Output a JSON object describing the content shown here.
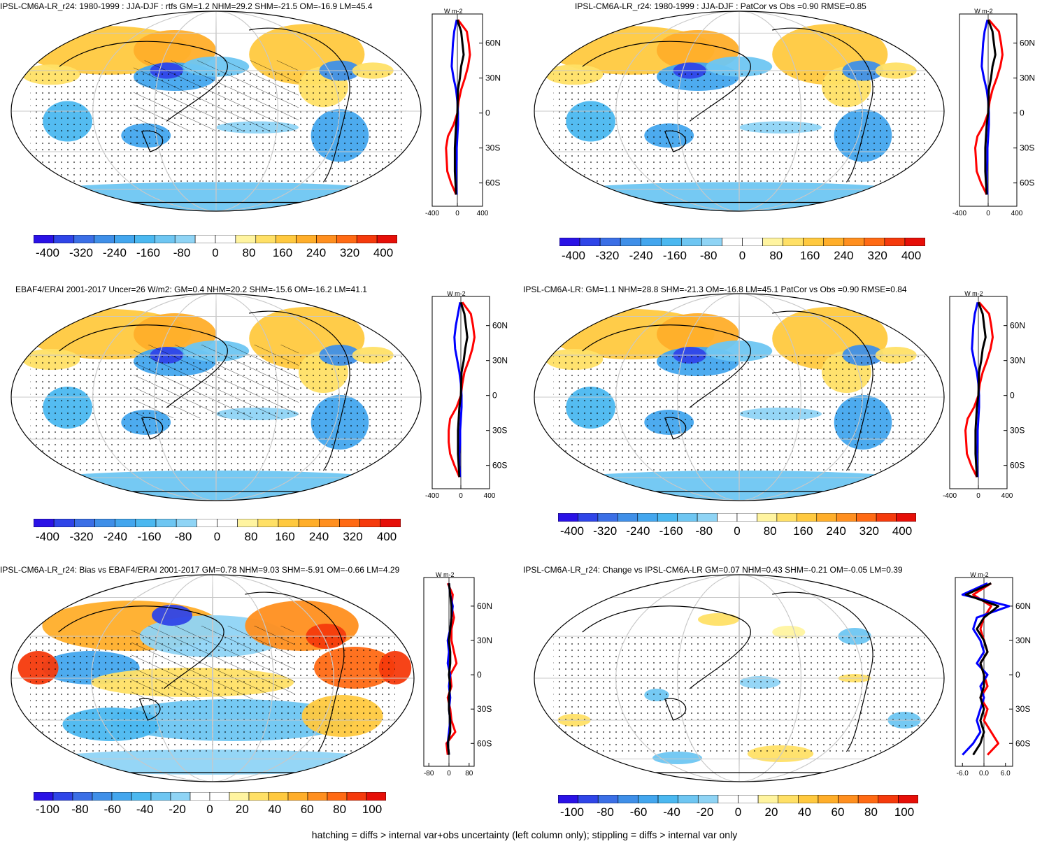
{
  "footer": "hatching = diffs > internal var+obs uncertainty (left column only); stippling = diffs > internal var only",
  "chart_data": [
    {
      "type": "heatmap",
      "title": "IPSL-CM6A-LR_r24: 1980-1999 : JJA-DJF : rtfs GM=1.2 NHM=29.2 SHM=-21.5 OM=-16.9 LM=45.4",
      "colorbar_ticks": [
        "-400",
        "-320",
        "-240",
        "-160",
        "-80",
        "0",
        "80",
        "160",
        "240",
        "320",
        "400"
      ],
      "zonal": {
        "unit": "W m-2",
        "xticks": [
          "-400",
          "0",
          "400"
        ],
        "xlim": [
          -400,
          400
        ],
        "lat_labels": [
          "60N",
          "30N",
          "0",
          "30S",
          "60S"
        ],
        "series": [
          {
            "color": "#ff0000",
            "lat": [
              80,
              70,
              60,
              50,
              40,
              30,
              20,
              10,
              0,
              -10,
              -20,
              -30,
              -40,
              -50,
              -60,
              -70
            ],
            "values": [
              10,
              150,
              180,
              200,
              170,
              120,
              60,
              20,
              0,
              -60,
              -150,
              -180,
              -170,
              -160,
              -100,
              -20
            ]
          },
          {
            "color": "#0000ff",
            "lat": [
              80,
              70,
              60,
              50,
              40,
              30,
              20,
              10,
              0,
              -10,
              -20,
              -30,
              -40,
              -50,
              -60,
              -70
            ],
            "values": [
              -10,
              -50,
              -70,
              -80,
              -90,
              -60,
              -20,
              0,
              10,
              10,
              0,
              -10,
              -10,
              -20,
              -20,
              -10
            ]
          },
          {
            "color": "#000000",
            "lat": [
              80,
              70,
              60,
              50,
              40,
              30,
              20,
              10,
              0,
              -10,
              -20,
              -30,
              -40,
              -50,
              -60,
              -70
            ],
            "values": [
              0,
              60,
              80,
              100,
              60,
              40,
              10,
              5,
              0,
              -20,
              -30,
              -40,
              -40,
              -40,
              -30,
              -20
            ]
          }
        ]
      }
    },
    {
      "type": "heatmap",
      "title": "IPSL-CM6A-LR_r24: 1980-1999 : JJA-DJF : PatCor vs Obs =0.90 RMSE=0.85",
      "colorbar_ticks": [
        "-400",
        "-320",
        "-240",
        "-160",
        "-80",
        "0",
        "80",
        "160",
        "240",
        "320",
        "400"
      ],
      "zonal": {
        "unit": "W m-2",
        "xticks": [
          "-400",
          "0",
          "400"
        ],
        "xlim": [
          -400,
          400
        ],
        "lat_labels": [
          "60N",
          "30N",
          "0",
          "30S",
          "60S"
        ],
        "series": [
          {
            "color": "#ff0000",
            "lat": [
              80,
              70,
              60,
              50,
              40,
              30,
              20,
              10,
              0,
              -10,
              -20,
              -30,
              -40,
              -50,
              -60,
              -70
            ],
            "values": [
              10,
              150,
              180,
              200,
              170,
              120,
              60,
              20,
              0,
              -60,
              -150,
              -180,
              -170,
              -160,
              -100,
              -20
            ]
          },
          {
            "color": "#0000ff",
            "lat": [
              80,
              70,
              60,
              50,
              40,
              30,
              20,
              10,
              0,
              -10,
              -20,
              -30,
              -40,
              -50,
              -60,
              -70
            ],
            "values": [
              -10,
              -50,
              -70,
              -80,
              -90,
              -60,
              -20,
              0,
              10,
              10,
              0,
              -10,
              -10,
              -20,
              -20,
              -10
            ]
          },
          {
            "color": "#000000",
            "lat": [
              80,
              70,
              60,
              50,
              40,
              30,
              20,
              10,
              0,
              -10,
              -20,
              -30,
              -40,
              -50,
              -60,
              -70
            ],
            "values": [
              0,
              60,
              80,
              100,
              60,
              40,
              10,
              5,
              0,
              -20,
              -30,
              -40,
              -40,
              -40,
              -30,
              -20
            ]
          }
        ]
      }
    },
    {
      "type": "heatmap",
      "title": "EBAF4/ERAI 2001-2017 Uncer=26 W/m2: GM=0.4 NHM=20.2 SHM=-15.6 OM=-16.2 LM=41.1",
      "colorbar_ticks": [
        "-400",
        "-320",
        "-240",
        "-160",
        "-80",
        "0",
        "80",
        "160",
        "240",
        "320",
        "400"
      ],
      "zonal": {
        "unit": "W m-2",
        "xticks": [
          "-400",
          "0",
          "400"
        ],
        "xlim": [
          -400,
          400
        ],
        "lat_labels": [
          "60N",
          "30N",
          "0",
          "30S",
          "60S"
        ],
        "series": [
          {
            "color": "#ff0000",
            "lat": [
              80,
              70,
              60,
              50,
              40,
              30,
              20,
              10,
              0,
              -10,
              -20,
              -30,
              -40,
              -50,
              -60,
              -70
            ],
            "values": [
              20,
              140,
              170,
              190,
              160,
              110,
              50,
              20,
              0,
              -60,
              -150,
              -170,
              -170,
              -150,
              -90,
              -20
            ]
          },
          {
            "color": "#0000ff",
            "lat": [
              80,
              70,
              60,
              50,
              40,
              30,
              20,
              10,
              0,
              -10,
              -20,
              -30,
              -40,
              -50,
              -60,
              -70
            ],
            "values": [
              -10,
              -40,
              -70,
              -90,
              -80,
              -50,
              -20,
              0,
              10,
              10,
              0,
              -10,
              -10,
              -20,
              -20,
              -10
            ]
          },
          {
            "color": "#000000",
            "lat": [
              80,
              70,
              60,
              50,
              40,
              30,
              20,
              10,
              0,
              -10,
              -20,
              -30,
              -40,
              -50,
              -60,
              -70
            ],
            "values": [
              0,
              50,
              70,
              90,
              60,
              40,
              10,
              5,
              0,
              -20,
              -30,
              -40,
              -40,
              -40,
              -30,
              -20
            ]
          }
        ]
      }
    },
    {
      "type": "heatmap",
      "title": "IPSL-CM6A-LR: GM=1.1 NHM=28.8 SHM=-21.3 OM=-16.8 LM=45.1 PatCor vs Obs =0.90 RMSE=0.84",
      "colorbar_ticks": [
        "-400",
        "-320",
        "-240",
        "-160",
        "-80",
        "0",
        "80",
        "160",
        "240",
        "320",
        "400"
      ],
      "zonal": {
        "unit": "W m-2",
        "xticks": [
          "-400",
          "0",
          "400"
        ],
        "xlim": [
          -400,
          400
        ],
        "lat_labels": [
          "60N",
          "30N",
          "0",
          "30S",
          "60S"
        ],
        "series": [
          {
            "color": "#ff0000",
            "lat": [
              80,
              70,
              60,
              50,
              40,
              30,
              20,
              10,
              0,
              -10,
              -20,
              -30,
              -40,
              -50,
              -60,
              -70
            ],
            "values": [
              10,
              150,
              180,
              200,
              170,
              120,
              60,
              20,
              0,
              -60,
              -150,
              -180,
              -170,
              -160,
              -100,
              -20
            ]
          },
          {
            "color": "#0000ff",
            "lat": [
              80,
              70,
              60,
              50,
              40,
              30,
              20,
              10,
              0,
              -10,
              -20,
              -30,
              -40,
              -50,
              -60,
              -70
            ],
            "values": [
              -10,
              -50,
              -70,
              -80,
              -90,
              -60,
              -20,
              0,
              10,
              10,
              0,
              -10,
              -10,
              -20,
              -20,
              -10
            ]
          },
          {
            "color": "#000000",
            "lat": [
              80,
              70,
              60,
              50,
              40,
              30,
              20,
              10,
              0,
              -10,
              -20,
              -30,
              -40,
              -50,
              -60,
              -70
            ],
            "values": [
              0,
              60,
              80,
              100,
              60,
              40,
              10,
              5,
              0,
              -20,
              -30,
              -40,
              -40,
              -40,
              -30,
              -20
            ]
          }
        ]
      }
    },
    {
      "type": "heatmap",
      "title": "IPSL-CM6A-LR_r24: Bias vs EBAF4/ERAI 2001-2017 GM=0.78 NHM=9.03 SHM=-5.91 OM=-0.66 LM=4.29",
      "colorbar_ticks": [
        "-100",
        "-80",
        "-60",
        "-40",
        "-20",
        "0",
        "20",
        "40",
        "60",
        "80",
        "100"
      ],
      "zonal": {
        "unit": "W m-2",
        "xticks": [
          "-80",
          "0",
          "80"
        ],
        "xlim": [
          -100,
          100
        ],
        "lat_labels": [
          "60N",
          "30N",
          "0",
          "30S",
          "60S"
        ],
        "series": [
          {
            "color": "#ff0000",
            "lat": [
              80,
              70,
              60,
              50,
              40,
              30,
              20,
              10,
              0,
              -10,
              -20,
              -30,
              -40,
              -50,
              -60,
              -70
            ],
            "values": [
              -5,
              15,
              10,
              20,
              10,
              10,
              20,
              30,
              5,
              10,
              -5,
              5,
              10,
              25,
              -10,
              -5
            ]
          },
          {
            "color": "#0000ff",
            "lat": [
              80,
              70,
              60,
              50,
              40,
              30,
              20,
              10,
              0,
              -10,
              -20,
              -30,
              -40,
              -50,
              -60,
              -70
            ],
            "values": [
              0,
              5,
              15,
              10,
              5,
              -5,
              0,
              -5,
              5,
              0,
              5,
              0,
              5,
              0,
              -5,
              0
            ]
          },
          {
            "color": "#000000",
            "lat": [
              80,
              70,
              60,
              50,
              40,
              30,
              20,
              10,
              0,
              -10,
              -20,
              -30,
              -40,
              -50,
              -60,
              -70
            ],
            "values": [
              0,
              5,
              10,
              10,
              5,
              0,
              5,
              5,
              0,
              5,
              0,
              0,
              5,
              5,
              -5,
              0
            ]
          }
        ]
      }
    },
    {
      "type": "heatmap",
      "title": "IPSL-CM6A-LR_r24: Change vs IPSL-CM6A-LR GM=0.07 NHM=0.43 SHM=-0.21 OM=-0.05 LM=0.39",
      "colorbar_ticks": [
        "-100",
        "-80",
        "-60",
        "-40",
        "-20",
        "0",
        "20",
        "40",
        "60",
        "80",
        "100"
      ],
      "zonal": {
        "unit": "W m-2",
        "xticks": [
          "-6.0",
          "0.0",
          "6.0"
        ],
        "xlim": [
          -8,
          8
        ],
        "lat_labels": [
          "60N",
          "30N",
          "0",
          "30S",
          "60S"
        ],
        "series": [
          {
            "color": "#ff0000",
            "lat": [
              80,
              70,
              60,
              50,
              40,
              30,
              20,
              10,
              0,
              -10,
              -20,
              -30,
              -40,
              -50,
              -60,
              -70
            ],
            "values": [
              2,
              -3,
              2,
              0,
              -1,
              0,
              1,
              -1,
              0,
              1,
              -1,
              1,
              0,
              2,
              4,
              1
            ]
          },
          {
            "color": "#0000ff",
            "lat": [
              80,
              70,
              60,
              50,
              40,
              30,
              20,
              10,
              0,
              -10,
              -20,
              -30,
              -40,
              -50,
              -60,
              -70
            ],
            "values": [
              1,
              -6,
              7,
              -2,
              -3,
              -1,
              0,
              -2,
              1,
              -1,
              0,
              -1,
              -2,
              -1,
              -3,
              -6
            ]
          },
          {
            "color": "#000000",
            "lat": [
              80,
              70,
              60,
              50,
              40,
              30,
              20,
              10,
              0,
              -10,
              -20,
              -30,
              -40,
              -50,
              -60,
              -70
            ],
            "values": [
              2,
              -5,
              4,
              0,
              -2,
              0,
              1,
              -1,
              0,
              0,
              -1,
              0,
              -1,
              0,
              -1,
              -3
            ]
          }
        ]
      }
    }
  ]
}
